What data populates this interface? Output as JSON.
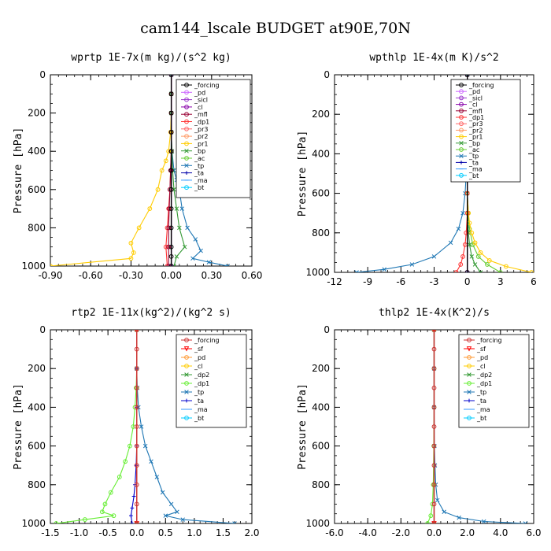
{
  "title": "cam144_lscale  BUDGET at90E,70N",
  "chart_data": [
    {
      "type": "line",
      "title": "wprtp  1E-7x(m kg)/(s^2 kg)",
      "ylabel": "Pressure [hPa]",
      "xlim": [
        -0.9,
        0.6
      ],
      "ylim": [
        0,
        1000
      ],
      "xticks": [
        "-0.90",
        "-0.60",
        "-0.30",
        "0.00",
        "0.30",
        "0.60"
      ],
      "yticks": [
        "0",
        "200",
        "400",
        "600",
        "800",
        "1000"
      ],
      "legend_position": "top-right",
      "series": [
        {
          "name": "_forcing",
          "color": "#000000",
          "marker": "o",
          "x": [
            0,
            0,
            0,
            0,
            0,
            0,
            0,
            0,
            0,
            0,
            0,
            0
          ],
          "y": [
            0,
            100,
            200,
            300,
            400,
            500,
            600,
            700,
            800,
            900,
            950,
            1000
          ]
        },
        {
          "name": "_pd",
          "color": "#cc66ff",
          "marker": "o",
          "x": [
            0,
            0
          ],
          "y": [
            0,
            1000
          ]
        },
        {
          "name": "_sicl",
          "color": "#9933cc",
          "marker": "o",
          "x": [
            0,
            0
          ],
          "y": [
            0,
            1000
          ]
        },
        {
          "name": "_cl",
          "color": "#8800aa",
          "marker": "o",
          "x": [
            0,
            0
          ],
          "y": [
            0,
            1000
          ]
        },
        {
          "name": "_mfl",
          "color": "#990033",
          "marker": "o",
          "x": [
            0,
            0,
            0,
            0,
            0,
            -0.005,
            -0.01,
            -0.015,
            -0.02,
            -0.02,
            -0.02
          ],
          "y": [
            0,
            100,
            200,
            300,
            400,
            500,
            600,
            700,
            800,
            900,
            1000
          ]
        },
        {
          "name": "_dp1",
          "color": "#ff3333",
          "marker": "o",
          "x": [
            0,
            0,
            0,
            0,
            0,
            -0.005,
            -0.01,
            -0.02,
            -0.03,
            -0.04,
            -0.03
          ],
          "y": [
            0,
            100,
            200,
            300,
            400,
            500,
            600,
            700,
            800,
            900,
            1000
          ]
        },
        {
          "name": "_pr3",
          "color": "#ff6666",
          "marker": "o",
          "x": [
            0,
            0
          ],
          "y": [
            0,
            1000
          ]
        },
        {
          "name": "_pr2",
          "color": "#ff9966",
          "marker": "o",
          "x": [
            0,
            0
          ],
          "y": [
            0,
            1000
          ]
        },
        {
          "name": "_pr1",
          "color": "#ffcc00",
          "marker": "o",
          "x": [
            0,
            0,
            0,
            -0.005,
            -0.02,
            -0.04,
            -0.07,
            -0.1,
            -0.16,
            -0.24,
            -0.3,
            -0.28,
            -0.3,
            -0.9
          ],
          "y": [
            0,
            100,
            200,
            300,
            400,
            450,
            500,
            600,
            700,
            800,
            880,
            930,
            960,
            1000
          ]
        },
        {
          "name": "_bp",
          "color": "#339933",
          "marker": "x",
          "x": [
            0,
            0,
            0,
            0,
            0.005,
            0.01,
            0.02,
            0.04,
            0.06,
            0.1,
            0.04,
            0.02
          ],
          "y": [
            0,
            100,
            200,
            300,
            400,
            500,
            600,
            700,
            800,
            900,
            950,
            1000
          ]
        },
        {
          "name": "_ac",
          "color": "#66cc33",
          "marker": "o",
          "x": [
            0,
            0
          ],
          "y": [
            0,
            1000
          ]
        },
        {
          "name": "_tp",
          "color": "#1f77b4",
          "marker": "x",
          "x": [
            0,
            0,
            0,
            0,
            0.005,
            0.02,
            0.04,
            0.06,
            0.08,
            0.12,
            0.18,
            0.22,
            0.16,
            0.28,
            0.42
          ],
          "y": [
            0,
            100,
            200,
            300,
            400,
            500,
            550,
            600,
            700,
            800,
            860,
            920,
            960,
            980,
            1000
          ]
        },
        {
          "name": "_ta",
          "color": "#0000aa",
          "marker": "+",
          "x": [
            0,
            0
          ],
          "y": [
            0,
            1000
          ]
        },
        {
          "name": "_ma",
          "color": "#3399ff",
          "marker": "-",
          "x": [
            0,
            0
          ],
          "y": [
            0,
            1000
          ]
        },
        {
          "name": "_bt",
          "color": "#00ccff",
          "marker": "o",
          "x": [
            0,
            0
          ],
          "y": [
            0,
            1000
          ]
        }
      ]
    },
    {
      "type": "line",
      "title": "wpthlp  1E-4x(m K)/s^2",
      "ylabel": "Pressure [hPa]",
      "xlim": [
        -12,
        6
      ],
      "ylim": [
        0,
        1000
      ],
      "xticks": [
        "-12",
        "-9",
        "-6",
        "-3",
        "0",
        "3",
        "6"
      ],
      "yticks": [
        "0",
        "200",
        "400",
        "600",
        "800",
        "1000"
      ],
      "legend_position": "top-right",
      "series": [
        {
          "name": "_forcing",
          "color": "#000000",
          "marker": "o",
          "x": [
            0,
            0
          ],
          "y": [
            0,
            1000
          ]
        },
        {
          "name": "_pd",
          "color": "#cc66ff",
          "marker": "o",
          "x": [
            0,
            0
          ],
          "y": [
            0,
            1000
          ]
        },
        {
          "name": "_sicl",
          "color": "#9933cc",
          "marker": "o",
          "x": [
            0,
            0
          ],
          "y": [
            0,
            1000
          ]
        },
        {
          "name": "_cl",
          "color": "#8800aa",
          "marker": "o",
          "x": [
            0,
            0
          ],
          "y": [
            0,
            1000
          ]
        },
        {
          "name": "_mfl",
          "color": "#990033",
          "marker": "o",
          "x": [
            0,
            0
          ],
          "y": [
            0,
            1000
          ]
        },
        {
          "name": "_dp1",
          "color": "#ff3333",
          "marker": "o",
          "x": [
            0,
            0,
            0,
            0,
            0,
            -0.1,
            -0.2,
            -0.4,
            -0.6,
            -1.0
          ],
          "y": [
            0,
            200,
            400,
            600,
            700,
            800,
            860,
            920,
            960,
            1000
          ]
        },
        {
          "name": "_pr3",
          "color": "#ff6666",
          "marker": "o",
          "x": [
            0,
            0
          ],
          "y": [
            0,
            1000
          ]
        },
        {
          "name": "_pr2",
          "color": "#ff9966",
          "marker": "o",
          "x": [
            0,
            0
          ],
          "y": [
            0,
            1000
          ]
        },
        {
          "name": "_pr1",
          "color": "#ffcc00",
          "marker": "o",
          "x": [
            0,
            0,
            0,
            0,
            0.1,
            0.2,
            0.4,
            0.7,
            1.2,
            2.0,
            3.5,
            5.8
          ],
          "y": [
            0,
            200,
            400,
            600,
            700,
            750,
            800,
            850,
            900,
            940,
            970,
            1000
          ]
        },
        {
          "name": "_bp",
          "color": "#339933",
          "marker": "x",
          "x": [
            0,
            0,
            0,
            0,
            0.05,
            0.1,
            0.2,
            0.4,
            0.7,
            1.2
          ],
          "y": [
            0,
            200,
            400,
            600,
            700,
            800,
            860,
            920,
            960,
            1000
          ]
        },
        {
          "name": "_ac",
          "color": "#66cc33",
          "marker": "o",
          "x": [
            0,
            0,
            0,
            0,
            0.1,
            0.2,
            0.5,
            1.0,
            1.8,
            3.0
          ],
          "y": [
            0,
            200,
            400,
            600,
            700,
            780,
            860,
            920,
            960,
            1000
          ]
        },
        {
          "name": "_tp",
          "color": "#1f77b4",
          "marker": "x",
          "x": [
            0,
            0,
            -0.05,
            -0.1,
            -0.2,
            -0.4,
            -0.8,
            -1.5,
            -3.0,
            -5.0,
            -7.5,
            -10.0
          ],
          "y": [
            0,
            200,
            400,
            500,
            600,
            700,
            780,
            850,
            920,
            960,
            985,
            1000
          ]
        },
        {
          "name": "_ta",
          "color": "#0000aa",
          "marker": "+",
          "x": [
            0,
            0
          ],
          "y": [
            0,
            1000
          ]
        },
        {
          "name": "_ma",
          "color": "#3399ff",
          "marker": "-",
          "x": [
            0,
            0
          ],
          "y": [
            0,
            1000
          ]
        },
        {
          "name": "_bt",
          "color": "#00ccff",
          "marker": "o",
          "x": [
            0,
            0
          ],
          "y": [
            0,
            1000
          ]
        }
      ]
    },
    {
      "type": "line",
      "title": "rtp2  1E-11x(kg^2)/(kg^2 s)",
      "ylabel": "Pressure [hPa]",
      "xlim": [
        -1.5,
        2.0
      ],
      "ylim": [
        0,
        1000
      ],
      "xticks": [
        "-1.5",
        "-1.0",
        "-0.5",
        "0.0",
        "0.5",
        "1.0",
        "1.5",
        "2.0"
      ],
      "yticks": [
        "0",
        "200",
        "400",
        "600",
        "800",
        "1000"
      ],
      "legend_position": "top-right",
      "series": [
        {
          "name": "_forcing",
          "color": "#cc3333",
          "marker": "o",
          "x": [
            0,
            0,
            0,
            0,
            0,
            0,
            0,
            0,
            0,
            0,
            0
          ],
          "y": [
            0,
            100,
            200,
            300,
            400,
            500,
            600,
            700,
            800,
            900,
            1000
          ]
        },
        {
          "name": "_sf",
          "color": "#ff0000",
          "marker": "v",
          "x": [
            0,
            0
          ],
          "y": [
            0,
            1000
          ]
        },
        {
          "name": "_pd",
          "color": "#ff9933",
          "marker": "o",
          "x": [
            0,
            0
          ],
          "y": [
            0,
            1000
          ]
        },
        {
          "name": "_cl",
          "color": "#ffcc00",
          "marker": "o",
          "x": [
            0,
            0
          ],
          "y": [
            0,
            1000
          ]
        },
        {
          "name": "_dp2",
          "color": "#339933",
          "marker": "x",
          "x": [
            0,
            0
          ],
          "y": [
            0,
            1000
          ]
        },
        {
          "name": "_dp1",
          "color": "#66ee33",
          "marker": "o",
          "x": [
            0,
            0,
            -0.01,
            -0.03,
            -0.06,
            -0.12,
            -0.2,
            -0.3,
            -0.45,
            -0.55,
            -0.6,
            -0.4,
            -0.9,
            -1.4
          ],
          "y": [
            0,
            200,
            300,
            400,
            500,
            600,
            680,
            760,
            840,
            900,
            940,
            960,
            980,
            1000
          ]
        },
        {
          "name": "_tp",
          "color": "#1f77b4",
          "marker": "x",
          "x": [
            0,
            0,
            0.01,
            0.03,
            0.08,
            0.15,
            0.25,
            0.35,
            0.45,
            0.6,
            0.7,
            0.5,
            0.8,
            1.7
          ],
          "y": [
            0,
            200,
            300,
            400,
            500,
            600,
            680,
            760,
            840,
            900,
            940,
            960,
            980,
            1000
          ]
        },
        {
          "name": "_ta",
          "color": "#0000cc",
          "marker": "+",
          "x": [
            0,
            0,
            0,
            0,
            -0.01,
            -0.03,
            -0.05,
            -0.08,
            -0.1,
            -0.08
          ],
          "y": [
            0,
            200,
            400,
            600,
            700,
            800,
            860,
            920,
            960,
            1000
          ]
        },
        {
          "name": "_ma",
          "color": "#3399ff",
          "marker": "-",
          "x": [
            0,
            0
          ],
          "y": [
            0,
            1000
          ]
        },
        {
          "name": "_bt",
          "color": "#00ccff",
          "marker": "o",
          "x": [
            0,
            0
          ],
          "y": [
            0,
            1000
          ]
        }
      ]
    },
    {
      "type": "line",
      "title": "thlp2  1E-4x(K^2)/s",
      "ylabel": "Pressure [hPa]",
      "xlim": [
        -6,
        6
      ],
      "ylim": [
        0,
        1000
      ],
      "xticks": [
        "-6.0",
        "-4.0",
        "-2.0",
        "0.0",
        "2.0",
        "4.0",
        "6.0"
      ],
      "yticks": [
        "0",
        "200",
        "400",
        "600",
        "800",
        "1000"
      ],
      "legend_position": "top-right",
      "series": [
        {
          "name": "_forcing",
          "color": "#cc3333",
          "marker": "o",
          "x": [
            0,
            0,
            0,
            0,
            0,
            0,
            0,
            0,
            0,
            0,
            0
          ],
          "y": [
            0,
            100,
            200,
            300,
            400,
            500,
            600,
            700,
            800,
            900,
            1000
          ]
        },
        {
          "name": "_sf",
          "color": "#ff0000",
          "marker": "v",
          "x": [
            0,
            0
          ],
          "y": [
            0,
            1000
          ]
        },
        {
          "name": "_pd",
          "color": "#ff9933",
          "marker": "o",
          "x": [
            0,
            0
          ],
          "y": [
            0,
            1000
          ]
        },
        {
          "name": "_cl",
          "color": "#ffcc00",
          "marker": "o",
          "x": [
            0,
            0
          ],
          "y": [
            0,
            1000
          ]
        },
        {
          "name": "_dp2",
          "color": "#339933",
          "marker": "x",
          "x": [
            0,
            0
          ],
          "y": [
            0,
            1000
          ]
        },
        {
          "name": "_dp1",
          "color": "#66ee33",
          "marker": "o",
          "x": [
            0,
            0,
            0,
            -0.02,
            -0.05,
            -0.1,
            -0.2,
            -0.4
          ],
          "y": [
            0,
            200,
            400,
            600,
            800,
            900,
            960,
            1000
          ]
        },
        {
          "name": "_tp",
          "color": "#1f77b4",
          "marker": "x",
          "x": [
            0,
            0,
            0,
            0.02,
            0.05,
            0.1,
            0.2,
            0.6,
            1.5,
            3.0,
            5.5
          ],
          "y": [
            0,
            200,
            400,
            600,
            700,
            800,
            880,
            940,
            970,
            990,
            1000
          ]
        },
        {
          "name": "_ta",
          "color": "#0000cc",
          "marker": "+",
          "x": [
            0,
            0
          ],
          "y": [
            0,
            1000
          ]
        },
        {
          "name": "_ma",
          "color": "#3399ff",
          "marker": "-",
          "x": [
            0,
            0
          ],
          "y": [
            0,
            1000
          ]
        },
        {
          "name": "_bt",
          "color": "#00ccff",
          "marker": "o",
          "x": [
            0,
            0
          ],
          "y": [
            0,
            1000
          ]
        }
      ]
    }
  ]
}
